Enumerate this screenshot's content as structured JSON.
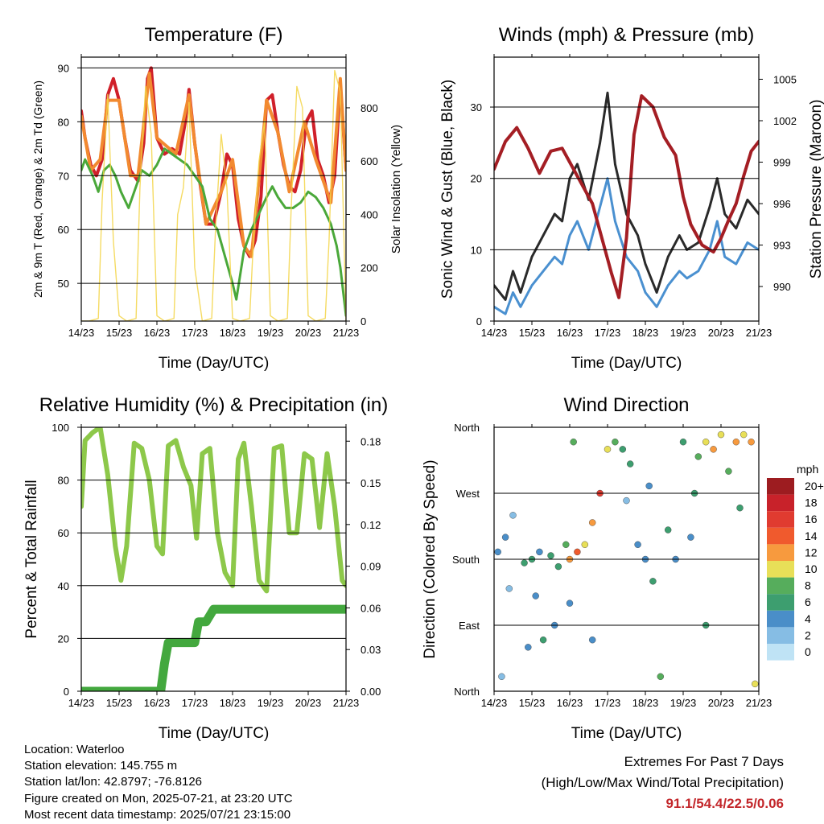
{
  "x_ticks": [
    "14/23",
    "15/23",
    "16/23",
    "17/23",
    "18/23",
    "19/23",
    "20/23",
    "21/23"
  ],
  "xlabel": "Time (Day/UTC)",
  "chart_data": [
    {
      "type": "line",
      "title": "Temperature (F)",
      "ylabel": "2m & 9m T (Red, Orange) & 2m Td (Green)",
      "y2label": "Solar Insolation (Yellow)",
      "ylim": [
        43,
        92
      ],
      "y2lim": [
        0,
        990
      ],
      "yticks": [
        50,
        60,
        70,
        80,
        90
      ],
      "y2ticks": [
        0,
        200,
        400,
        600,
        800
      ],
      "series": [
        {
          "color": "#d0202a",
          "axis": "left",
          "x": [
            0,
            0.1,
            0.25,
            0.4,
            0.55,
            0.7,
            0.85,
            1.0,
            1.15,
            1.3,
            1.5,
            1.65,
            1.75,
            1.85,
            2.0,
            2.2,
            2.4,
            2.6,
            2.75,
            2.85,
            3.0,
            3.15,
            3.3,
            3.5,
            3.7,
            3.85,
            4.0,
            4.15,
            4.3,
            4.45,
            4.6,
            4.75,
            4.9,
            5.05,
            5.2,
            5.35,
            5.5,
            5.65,
            5.8,
            5.95,
            6.1,
            6.25,
            6.4,
            6.55,
            6.7,
            6.85,
            7.0
          ],
          "y": [
            82,
            77,
            72,
            70,
            73,
            85,
            88,
            84,
            77,
            71,
            69,
            76,
            88,
            90,
            77,
            74,
            75,
            74,
            80,
            86,
            76,
            68,
            61,
            61,
            67,
            74,
            72,
            62,
            57,
            55,
            58,
            66,
            84,
            85,
            78,
            72,
            68,
            67,
            71,
            80,
            82,
            73,
            70,
            65,
            70,
            87,
            71
          ]
        },
        {
          "color": "#f28a30",
          "axis": "left",
          "x": [
            0,
            0.25,
            0.5,
            0.7,
            1.0,
            1.3,
            1.5,
            1.8,
            2.0,
            2.5,
            2.85,
            3.0,
            3.3,
            3.7,
            4.0,
            4.3,
            4.5,
            4.9,
            5.2,
            5.5,
            5.9,
            6.2,
            6.6,
            6.85,
            7.0
          ],
          "y": [
            81,
            71,
            73,
            84,
            84,
            70,
            70,
            89,
            77,
            74,
            85,
            76,
            61,
            67,
            73,
            57,
            55,
            84,
            78,
            67,
            80,
            73,
            65,
            88,
            71
          ]
        },
        {
          "color": "#4aa83a",
          "axis": "left",
          "x": [
            0,
            0.1,
            0.3,
            0.45,
            0.6,
            0.75,
            0.9,
            1.05,
            1.25,
            1.45,
            1.6,
            1.8,
            2.0,
            2.2,
            2.4,
            2.6,
            2.8,
            3.0,
            3.2,
            3.4,
            3.6,
            3.8,
            4.0,
            4.1,
            4.3,
            4.5,
            4.7,
            4.9,
            5.05,
            5.2,
            5.4,
            5.6,
            5.8,
            6.0,
            6.2,
            6.4,
            6.6,
            6.75,
            6.85,
            7.0
          ],
          "y": [
            71,
            73,
            70,
            67,
            71,
            72,
            70,
            67,
            64,
            68,
            71,
            70,
            72,
            75,
            74,
            73,
            72,
            70,
            68,
            62,
            60,
            55,
            50,
            47,
            56,
            60,
            63,
            66,
            68,
            66,
            64,
            64,
            65,
            67,
            66,
            64,
            61,
            57,
            53,
            44
          ]
        },
        {
          "color": "#f3d548",
          "axis": "right",
          "x": [
            0,
            0.2,
            0.45,
            0.55,
            0.7,
            0.85,
            1.0,
            1.2,
            1.45,
            1.55,
            1.7,
            1.85,
            2.0,
            2.2,
            2.45,
            2.55,
            2.7,
            2.85,
            3.0,
            3.2,
            3.45,
            3.55,
            3.7,
            3.85,
            4.0,
            4.2,
            4.45,
            4.55,
            4.7,
            4.85,
            5.0,
            5.2,
            5.45,
            5.55,
            5.7,
            5.85,
            6.0,
            6.2,
            6.45,
            6.55,
            6.7,
            6.85,
            7.0
          ],
          "y": [
            0,
            0,
            10,
            450,
            850,
            300,
            20,
            0,
            10,
            500,
            880,
            700,
            20,
            0,
            10,
            400,
            500,
            820,
            200,
            0,
            10,
            350,
            700,
            500,
            10,
            0,
            10,
            300,
            600,
            750,
            20,
            0,
            10,
            420,
            880,
            800,
            20,
            0,
            10,
            300,
            940,
            860,
            0
          ]
        }
      ]
    },
    {
      "type": "line",
      "title": "Winds (mph) & Pressure (mb)",
      "ylabel": "Sonic Wind & Gust (Blue, Black)",
      "y2label": "Station Pressure (Maroon)",
      "ylim": [
        0,
        37
      ],
      "y2lim": [
        987.5,
        1006.6
      ],
      "yticks": [
        0,
        10,
        20,
        30
      ],
      "y2ticks": [
        990,
        993,
        996,
        999,
        1002,
        1005
      ],
      "series": [
        {
          "color": "#2a2a2a",
          "axis": "left",
          "x": [
            0,
            0.3,
            0.5,
            0.7,
            1.0,
            1.3,
            1.6,
            1.8,
            2.0,
            2.2,
            2.5,
            2.8,
            3.0,
            3.2,
            3.5,
            3.8,
            4.0,
            4.3,
            4.6,
            4.9,
            5.1,
            5.4,
            5.7,
            5.9,
            6.1,
            6.4,
            6.7,
            7.0
          ],
          "y": [
            5,
            3,
            7,
            4,
            9,
            12,
            15,
            14,
            20,
            22,
            17,
            25,
            32,
            22,
            15,
            12,
            8,
            4,
            9,
            12,
            10,
            11,
            16,
            20,
            15,
            13,
            17,
            15
          ]
        },
        {
          "color": "#4a90d0",
          "axis": "left",
          "x": [
            0,
            0.3,
            0.5,
            0.7,
            1.0,
            1.3,
            1.6,
            1.8,
            2.0,
            2.2,
            2.5,
            2.8,
            3.0,
            3.2,
            3.5,
            3.8,
            4.0,
            4.3,
            4.6,
            4.9,
            5.1,
            5.4,
            5.7,
            5.9,
            6.1,
            6.4,
            6.7,
            7.0
          ],
          "y": [
            2,
            1,
            4,
            2,
            5,
            7,
            9,
            8,
            12,
            14,
            10,
            16,
            20,
            14,
            9,
            7,
            4,
            2,
            5,
            7,
            6,
            7,
            10,
            14,
            9,
            8,
            11,
            10
          ]
        },
        {
          "color": "#a41e24",
          "axis": "right",
          "x": [
            0,
            0.3,
            0.6,
            0.9,
            1.2,
            1.5,
            1.8,
            2.0,
            2.3,
            2.6,
            2.9,
            3.1,
            3.3,
            3.5,
            3.7,
            3.9,
            4.2,
            4.5,
            4.8,
            5.0,
            5.2,
            5.5,
            5.8,
            6.0,
            6.2,
            6.4,
            6.6,
            6.8,
            7.0
          ],
          "y": [
            998.5,
            1000.5,
            1001.5,
            1000,
            998.2,
            999.8,
            1000,
            999,
            997.5,
            996,
            993,
            991,
            989.2,
            993.5,
            1001,
            1003.8,
            1003,
            1000.8,
            999.5,
            996.5,
            994.5,
            993,
            992.5,
            993.5,
            994.8,
            996,
            998,
            999.8,
            1000.5
          ]
        }
      ]
    },
    {
      "type": "line",
      "title": "Relative Humidity (%) & Precipitation (in)",
      "ylabel": "Percent & Total Rainfall",
      "ylim": [
        0,
        100
      ],
      "y2lim": [
        0,
        0.19
      ],
      "yticks": [
        0,
        20,
        40,
        60,
        80,
        100
      ],
      "y2ticks": [
        "0.00",
        "0.03",
        "0.06",
        "0.09",
        "0.12",
        "0.15",
        "0.18"
      ],
      "series": [
        {
          "color": "#8dc84a",
          "axis": "left",
          "x": [
            0,
            0.1,
            0.3,
            0.5,
            0.7,
            0.9,
            1.05,
            1.2,
            1.4,
            1.6,
            1.8,
            2.0,
            2.15,
            2.3,
            2.5,
            2.7,
            2.9,
            3.05,
            3.2,
            3.4,
            3.6,
            3.8,
            4.0,
            4.15,
            4.3,
            4.5,
            4.7,
            4.9,
            5.1,
            5.3,
            5.5,
            5.7,
            5.9,
            6.1,
            6.3,
            6.5,
            6.7,
            6.9,
            7.0
          ],
          "y": [
            70,
            95,
            98,
            100,
            82,
            55,
            42,
            55,
            94,
            92,
            80,
            55,
            52,
            93,
            95,
            85,
            78,
            58,
            90,
            92,
            60,
            45,
            40,
            88,
            94,
            70,
            42,
            38,
            92,
            93,
            60,
            60,
            90,
            88,
            62,
            90,
            70,
            42,
            40
          ]
        },
        {
          "color": "#43a83e",
          "axis": "right",
          "x": [
            0,
            0.5,
            1.0,
            1.5,
            2.1,
            2.2,
            2.3,
            2.5,
            3.0,
            3.1,
            3.3,
            3.5,
            4.0,
            5.0,
            6.0,
            7.0
          ],
          "y": [
            0,
            0,
            0,
            0,
            0,
            0.02,
            0.035,
            0.035,
            0.035,
            0.05,
            0.05,
            0.059,
            0.059,
            0.059,
            0.059,
            0.059
          ]
        }
      ]
    },
    {
      "type": "scatter",
      "title": "Wind Direction",
      "ylabel": "Direction (Colored By Speed)",
      "yticks": [
        "North",
        "East",
        "South",
        "West",
        "North"
      ],
      "ylim": [
        0,
        360
      ],
      "colorbar": {
        "label": "mph",
        "ticks": [
          "20+",
          "18",
          "16",
          "14",
          "12",
          "10",
          "8",
          "6",
          "4",
          "2",
          "0"
        ],
        "colors": [
          "#9d1c20",
          "#c8222a",
          "#e03b30",
          "#f05a2d",
          "#f79a3e",
          "#e8df58",
          "#56ad5c",
          "#3d9e6f",
          "#4a8ec8",
          "#86bde4",
          "#bfe3f5"
        ]
      },
      "points": [
        {
          "x": 0.1,
          "y": 190,
          "s": 3
        },
        {
          "x": 0.3,
          "y": 210,
          "s": 4
        },
        {
          "x": 0.5,
          "y": 240,
          "s": 2
        },
        {
          "x": 0.8,
          "y": 175,
          "s": 5
        },
        {
          "x": 1.0,
          "y": 180,
          "s": 6
        },
        {
          "x": 1.2,
          "y": 190,
          "s": 4
        },
        {
          "x": 1.3,
          "y": 70,
          "s": 6
        },
        {
          "x": 1.5,
          "y": 185,
          "s": 6
        },
        {
          "x": 1.7,
          "y": 170,
          "s": 5
        },
        {
          "x": 1.9,
          "y": 200,
          "s": 8
        },
        {
          "x": 2.0,
          "y": 180,
          "s": 12
        },
        {
          "x": 2.1,
          "y": 340,
          "s": 8
        },
        {
          "x": 2.2,
          "y": 190,
          "s": 14
        },
        {
          "x": 2.4,
          "y": 200,
          "s": 10
        },
        {
          "x": 2.6,
          "y": 230,
          "s": 12
        },
        {
          "x": 2.8,
          "y": 270,
          "s": 16
        },
        {
          "x": 3.0,
          "y": 330,
          "s": 10
        },
        {
          "x": 3.2,
          "y": 340,
          "s": 8
        },
        {
          "x": 3.4,
          "y": 330,
          "s": 6
        },
        {
          "x": 3.6,
          "y": 310,
          "s": 5
        },
        {
          "x": 3.8,
          "y": 200,
          "s": 3
        },
        {
          "x": 4.0,
          "y": 180,
          "s": 4
        },
        {
          "x": 4.2,
          "y": 150,
          "s": 6
        },
        {
          "x": 4.4,
          "y": 20,
          "s": 8
        },
        {
          "x": 4.6,
          "y": 220,
          "s": 5
        },
        {
          "x": 4.8,
          "y": 180,
          "s": 4
        },
        {
          "x": 5.0,
          "y": 340,
          "s": 6
        },
        {
          "x": 5.2,
          "y": 210,
          "s": 4
        },
        {
          "x": 5.4,
          "y": 320,
          "s": 8
        },
        {
          "x": 5.6,
          "y": 340,
          "s": 10
        },
        {
          "x": 5.8,
          "y": 330,
          "s": 12
        },
        {
          "x": 6.0,
          "y": 350,
          "s": 10
        },
        {
          "x": 6.2,
          "y": 300,
          "s": 8
        },
        {
          "x": 6.4,
          "y": 340,
          "s": 12
        },
        {
          "x": 6.6,
          "y": 350,
          "s": 10
        },
        {
          "x": 6.8,
          "y": 340,
          "s": 12
        },
        {
          "x": 6.9,
          "y": 10,
          "s": 10
        },
        {
          "x": 0.2,
          "y": 20,
          "s": 2
        },
        {
          "x": 0.9,
          "y": 60,
          "s": 3
        },
        {
          "x": 1.6,
          "y": 90,
          "s": 3
        },
        {
          "x": 2.6,
          "y": 70,
          "s": 4
        },
        {
          "x": 5.6,
          "y": 90,
          "s": 5
        },
        {
          "x": 0.4,
          "y": 140,
          "s": 2
        },
        {
          "x": 1.1,
          "y": 130,
          "s": 3
        },
        {
          "x": 2.0,
          "y": 120,
          "s": 4
        },
        {
          "x": 3.5,
          "y": 260,
          "s": 2
        },
        {
          "x": 4.1,
          "y": 280,
          "s": 3
        },
        {
          "x": 5.3,
          "y": 270,
          "s": 5
        },
        {
          "x": 6.5,
          "y": 250,
          "s": 6
        }
      ]
    }
  ],
  "info": {
    "location": "Location: Waterloo",
    "elevation": "Station elevation: 145.755 m",
    "latlon": "Station lat/lon: 42.8797; -76.8126",
    "created": "Figure created on Mon, 2025-07-21, at 23:20 UTC",
    "recent": "Most recent data timestamp: 2025/07/21 23:15:00"
  },
  "extremes": {
    "line1": "Extremes For Past 7 Days",
    "line2": "(High/Low/Max Wind/Total Precipitation)",
    "values": "91.1/54.4/22.5/0.06"
  }
}
